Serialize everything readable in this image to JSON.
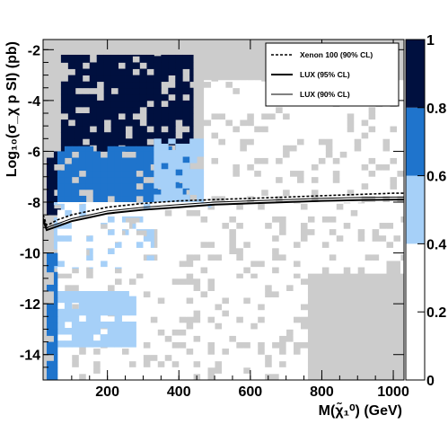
{
  "chart_data": {
    "type": "heatmap",
    "title": "",
    "xlabel": "M(χ̃₁⁰) (GeV)",
    "ylabel": "Log₁₀(σ_χ p SI) (pb)",
    "xlim": [
      20,
      1030
    ],
    "ylim": [
      -15,
      -1.6
    ],
    "x_ticks": [
      "200",
      "400",
      "600",
      "800",
      "1000"
    ],
    "y_ticks": [
      "-2",
      "-4",
      "-6",
      "-8",
      "-10",
      "-12",
      "-14"
    ],
    "colorbar": {
      "range": [
        0,
        1
      ],
      "ticks": [
        "0",
        "0.2",
        "0.4",
        "0.6",
        "0.8",
        "1"
      ],
      "bands": [
        {
          "from": 0.0,
          "to": 0.2,
          "color": "#ffffff"
        },
        {
          "from": 0.2,
          "to": 0.4,
          "color": "#ffffff"
        },
        {
          "from": 0.4,
          "to": 0.6,
          "color": "#a6d0f8"
        },
        {
          "from": 0.6,
          "to": 0.8,
          "color": "#1f74cc"
        },
        {
          "from": 0.8,
          "to": 1.0,
          "color": "#00103f"
        }
      ]
    },
    "background_color": "#cccccc",
    "grid": false,
    "legend_position": "top-right",
    "legend": [
      {
        "label": "Xenon 100 (90% CL)",
        "style": "dashed"
      },
      {
        "label": "LUX (95% CL)",
        "style": "thick"
      },
      {
        "label": "LUX (90% CL)",
        "style": "thin"
      }
    ],
    "series": [
      {
        "name": "Xenon 100 (90% CL)",
        "x": [
          20,
          30,
          40,
          60,
          80,
          100,
          150,
          200,
          300,
          400,
          500,
          600,
          700,
          800,
          900,
          1000,
          1030
        ],
        "y": [
          -8.5,
          -8.9,
          -8.85,
          -8.7,
          -8.6,
          -8.5,
          -8.35,
          -8.2,
          -8.05,
          -7.95,
          -7.9,
          -7.85,
          -7.8,
          -7.75,
          -7.7,
          -7.65,
          -7.65
        ]
      },
      {
        "name": "LUX (95% CL)",
        "x": [
          20,
          30,
          40,
          60,
          80,
          100,
          150,
          200,
          300,
          400,
          500,
          600,
          700,
          800,
          900,
          1000,
          1030
        ],
        "y": [
          -8.7,
          -9.1,
          -9.05,
          -8.95,
          -8.85,
          -8.75,
          -8.6,
          -8.45,
          -8.3,
          -8.2,
          -8.1,
          -8.05,
          -8.0,
          -7.95,
          -7.92,
          -7.9,
          -7.9
        ]
      },
      {
        "name": "LUX (90% CL)",
        "x": [
          20,
          30,
          40,
          60,
          80,
          100,
          150,
          200,
          300,
          400,
          500,
          600,
          700,
          800,
          900,
          1000,
          1030
        ],
        "y": [
          -8.6,
          -9.0,
          -8.95,
          -8.85,
          -8.75,
          -8.65,
          -8.5,
          -8.35,
          -8.2,
          -8.1,
          -8.0,
          -7.95,
          -7.9,
          -7.85,
          -7.82,
          -7.8,
          -7.8
        ]
      }
    ],
    "regions": [
      {
        "level": 0.9,
        "x": [
          30,
          70
        ],
        "y": [
          -8.5,
          -6.0
        ]
      },
      {
        "level": 0.9,
        "x": [
          70,
          440
        ],
        "y": [
          -6.0,
          -2.2
        ]
      },
      {
        "level": 0.7,
        "x": [
          60,
          430
        ],
        "y": [
          -8.0,
          -5.8
        ]
      },
      {
        "level": 0.5,
        "x": [
          50,
          330
        ],
        "y": [
          -10.6,
          -8.0
        ]
      },
      {
        "level": 0.5,
        "x": [
          330,
          490
        ],
        "y": [
          -8.2,
          -5.5
        ]
      },
      {
        "level": 0.3,
        "x": [
          60,
          1030
        ],
        "y": [
          -10.8,
          -8.0
        ]
      },
      {
        "level": 0.3,
        "x": [
          470,
          1030
        ],
        "y": [
          -8.0,
          -3.2
        ]
      },
      {
        "level": 0.3,
        "x": [
          60,
          760
        ],
        "y": [
          -15.0,
          -10.8
        ]
      },
      {
        "level": 0.5,
        "x": [
          60,
          280
        ],
        "y": [
          -13.7,
          -11.5
        ]
      },
      {
        "level": 0.7,
        "x": [
          30,
          60
        ],
        "y": [
          -15.0,
          -10.0
        ]
      }
    ]
  }
}
